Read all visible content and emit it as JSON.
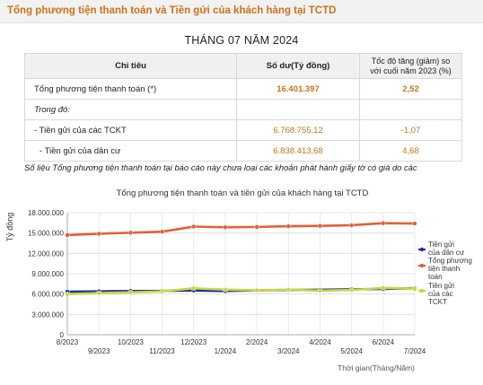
{
  "header": {
    "title": "Tổng phương tiện thanh toán và Tiền gửi của khách hàng tại TCTD"
  },
  "report": {
    "title": "THÁNG 07 NĂM 2024"
  },
  "table": {
    "headers": [
      "Chỉ tiêu",
      "Số dư(Tỷ đồng)",
      "Tốc độ tăng (giảm) so với cuối năm 2023 (%)"
    ],
    "rows": [
      {
        "indicator": "Tổng phương tiện thanh toán (*)",
        "balance": "16.401.397",
        "growth": "2,52"
      },
      {
        "indicator": "Trong đó:",
        "balance": "",
        "growth": ""
      },
      {
        "indicator": "- Tiền gửi của các TCKT",
        "balance": "6.768.755,12",
        "growth": "-1,07"
      },
      {
        "indicator": "- Tiền gửi của dân cư",
        "balance": "6.838.413,68",
        "growth": "4,68"
      }
    ]
  },
  "note": "Số liệu Tổng phương tiện thanh toán tại báo cáo này chưa loại các khoản phát hành giấy tờ có giá do các",
  "chart_data": {
    "type": "line",
    "title": "Tổng phương tiện thanh toán và tiền gửi của khách hàng tại TCTD",
    "xlabel": "Thời gian(Tháng/Năm)",
    "ylabel": "Tỷ đồng",
    "ylim": [
      0,
      18000000
    ],
    "yticks": [
      "0",
      "3.000.000",
      "6.000.000",
      "9.000.000",
      "12.000.000",
      "15.000.000",
      "18.000.000"
    ],
    "categories": [
      "8/2023",
      "9/2023",
      "10/2023",
      "11/2023",
      "12/2023",
      "1/2024",
      "2/2024",
      "3/2024",
      "4/2024",
      "5/2024",
      "6/2024",
      "7/2024"
    ],
    "grid": true,
    "legend": "right",
    "series": [
      {
        "name": "Tiền gửi của dân cư",
        "color": "#1f2fa8",
        "values": [
          6350000,
          6400000,
          6450000,
          6470000,
          6530000,
          6450000,
          6550000,
          6600000,
          6620000,
          6700000,
          6750000,
          6838414
        ]
      },
      {
        "name": "Tổng phương tiện thanh toán",
        "color": "#e2603a",
        "values": [
          14700000,
          14900000,
          15050000,
          15200000,
          15950000,
          15850000,
          15900000,
          16000000,
          16050000,
          16150000,
          16450000,
          16401397
        ]
      },
      {
        "name": "Tiền gửi của các TCKT",
        "color": "#c9d63a",
        "values": [
          6000000,
          6150000,
          6250000,
          6400000,
          6850000,
          6650000,
          6550000,
          6650000,
          6500000,
          6600000,
          6900000,
          6768755
        ]
      }
    ]
  }
}
